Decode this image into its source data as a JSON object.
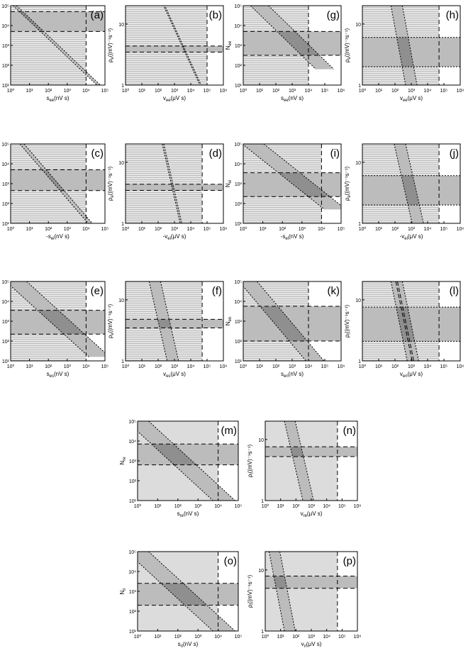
{
  "chart_data": [
    {
      "id": "a",
      "type": "area",
      "label": "(a)",
      "ylabel": "N",
      "ysub": "ee",
      "xlabel": "s",
      "xsub": "ee",
      "xunit": "(nV s)",
      "xprefix": "",
      "ylog": [
        1,
        5
      ],
      "xlog": [
        0,
        5
      ],
      "xticks": [
        "10⁰",
        "10¹",
        "10²",
        "10³",
        "10⁴",
        "10⁵"
      ],
      "yticks": [
        "10¹",
        "10²",
        "10³",
        "10⁴",
        "10⁵"
      ],
      "band": [
        3.7,
        4.7
      ],
      "diag": [
        [
          0,
          5.2
        ],
        [
          5,
          0.7
        ]
      ],
      "diagw": 0.09,
      "vline": 4,
      "style": "hatch"
    },
    {
      "id": "b",
      "type": "area",
      "label": "(b)",
      "ylabel": "ρ",
      "ysub": "e",
      "yunit": "((mV)⁻¹s⁻¹)",
      "xlabel": "v",
      "xsub": "ee",
      "xunit": "(μV s)",
      "xlog": [
        0,
        6
      ],
      "ylog": [
        0,
        1.3
      ],
      "xticks": [
        "10⁰",
        "10¹",
        "10²",
        "10³",
        "10⁴",
        "10⁵",
        "10⁶"
      ],
      "yticks": [
        "1",
        "10"
      ],
      "band": [
        0.54,
        0.64
      ],
      "diag": [
        [
          2.2,
          1.4
        ],
        [
          4.6,
          0
        ]
      ],
      "diagw": 0.04,
      "vline": 5,
      "style": "hatch"
    },
    {
      "id": "g",
      "type": "area",
      "label": "(g)",
      "ylabel": "N",
      "ysub": "ee",
      "xlabel": "s",
      "xsub": "ee",
      "xunit": "(nV s)",
      "xlog": [
        0,
        6
      ],
      "ylog": [
        1,
        5
      ],
      "xticks": [
        "10⁰",
        "10¹",
        "10²",
        "10³",
        "10⁴",
        "10⁵",
        "10⁶"
      ],
      "yticks": [
        "10¹",
        "10²",
        "10³",
        "10⁴",
        "10⁵"
      ],
      "band": [
        2.5,
        3.7
      ],
      "diag": [
        [
          1,
          5
        ],
        [
          5,
          1.8
        ]
      ],
      "diagw": 0.55,
      "vline": 4,
      "style": "hatch"
    },
    {
      "id": "h",
      "type": "area",
      "label": "(h)",
      "ylabel": "ρ",
      "ysub": "e",
      "yunit": "((mV)⁻¹s⁻¹)",
      "xlabel": "v",
      "xsub": "ee",
      "xunit": "(μV s)",
      "xlog": [
        0,
        6
      ],
      "ylog": [
        0,
        1.3
      ],
      "xticks": [
        "10⁰",
        "10¹",
        "10²",
        "10³",
        "10⁴",
        "10⁵",
        "10⁶"
      ],
      "yticks": [
        "1",
        "10"
      ],
      "band": [
        0.3,
        0.78
      ],
      "diag": [
        [
          2.1,
          1.3
        ],
        [
          3,
          0
        ]
      ],
      "diagw": 0.35,
      "vline": 4.7,
      "style": "hatch"
    },
    {
      "id": "c",
      "type": "area",
      "label": "(c)",
      "ylabel": "N",
      "ysub": "ee",
      "xlabel": "-s",
      "xsub": "ei",
      "xunit": "(nV s)",
      "xlog": [
        0,
        5
      ],
      "ylog": [
        1,
        5
      ],
      "xticks": [
        "10⁰",
        "10¹",
        "10²",
        "10³",
        "10⁴",
        "10⁵"
      ],
      "yticks": [
        "10¹",
        "10²",
        "10³",
        "10⁴",
        "10⁵"
      ],
      "band": [
        2.65,
        3.7
      ],
      "diag": [
        [
          0.6,
          5
        ],
        [
          4.4,
          0.8
        ]
      ],
      "diagw": 0.11,
      "vline": 4,
      "style": "hatch"
    },
    {
      "id": "d",
      "type": "area",
      "label": "(d)",
      "ylabel": "ρ",
      "ysub": "e",
      "yunit": "((mV)⁻¹s⁻¹)",
      "xlabel": "-v",
      "xsub": "ei",
      "xunit": "(μV s)",
      "xlog": [
        0,
        6
      ],
      "ylog": [
        0,
        1.3
      ],
      "xticks": [
        "10⁰",
        "10¹",
        "10²",
        "10³",
        "10⁴",
        "10⁵",
        "10⁶"
      ],
      "yticks": [
        "1",
        "10"
      ],
      "band": [
        0.54,
        0.64
      ],
      "diag": [
        [
          2.3,
          1.3
        ],
        [
          3.4,
          0
        ]
      ],
      "diagw": 0.05,
      "vline": 4.7,
      "style": "hatch"
    },
    {
      "id": "i",
      "type": "area",
      "label": "(i)",
      "ylabel": "N",
      "ysub": "ei",
      "xlabel": "-s",
      "xsub": "ei",
      "xunit": "(nV s)",
      "xlog": [
        0,
        5
      ],
      "ylog": [
        1,
        5
      ],
      "xticks": [
        "10⁰",
        "10¹",
        "10²",
        "10³",
        "10⁴",
        "10⁵"
      ],
      "yticks": [
        "10¹",
        "10²",
        "10³",
        "10⁴",
        "10⁵"
      ],
      "band": [
        2.35,
        3.55
      ],
      "diag": [
        [
          0.5,
          5
        ],
        [
          4.7,
          1.7
        ]
      ],
      "diagw": 0.55,
      "vline": 4,
      "style": "hatch"
    },
    {
      "id": "j",
      "type": "area",
      "label": "(j)",
      "ylabel": "ρ",
      "ysub": "e",
      "yunit": "((mV)⁻¹s⁻¹)",
      "xlabel": "-v",
      "xsub": "ei",
      "xunit": "(μV s)",
      "xlog": [
        0,
        6
      ],
      "ylog": [
        0,
        1.3
      ],
      "xticks": [
        "10⁰",
        "10¹",
        "10²",
        "10³",
        "10⁴",
        "10⁵",
        "10⁶"
      ],
      "yticks": [
        "1",
        "10"
      ],
      "band": [
        0.3,
        0.78
      ],
      "diag": [
        [
          2.3,
          1.3
        ],
        [
          3.4,
          0
        ]
      ],
      "diagw": 0.35,
      "vline": 4.7,
      "style": "hatch"
    },
    {
      "id": "e",
      "type": "area",
      "label": "(e)",
      "ylabel": "N",
      "ysub": "es",
      "xlabel": "s",
      "xsub": "es",
      "xunit": "(nV s)",
      "xlog": [
        0,
        5
      ],
      "ylog": [
        1,
        5
      ],
      "xticks": [
        "10⁰",
        "10¹",
        "10²",
        "10³",
        "10⁴",
        "10⁵"
      ],
      "yticks": [
        "10¹",
        "10²",
        "10³",
        "10⁴",
        "10⁵"
      ],
      "band": [
        2.35,
        3.55
      ],
      "diag": [
        [
          0.3,
          5
        ],
        [
          4.7,
          1.2
        ]
      ],
      "diagw": 0.55,
      "vline": 4,
      "style": "hatch"
    },
    {
      "id": "f",
      "type": "area",
      "label": "(f)",
      "ylabel": "ρ",
      "ysub": "e",
      "yunit": "((mV)⁻¹s⁻¹)",
      "xlabel": "v",
      "xsub": "es",
      "xunit": "(μV s)",
      "xlog": [
        0,
        6
      ],
      "ylog": [
        0,
        1.3
      ],
      "xticks": [
        "10⁰",
        "10¹",
        "10²",
        "10³",
        "10⁴",
        "10⁵",
        "10⁶"
      ],
      "yticks": [
        "1",
        "10"
      ],
      "band": [
        0.54,
        0.68
      ],
      "diag": [
        [
          1.8,
          1.3
        ],
        [
          2.9,
          0
        ]
      ],
      "diagw": 0.35,
      "vline": 4.7,
      "style": "hatch"
    },
    {
      "id": "k",
      "type": "area",
      "label": "(k)",
      "ylabel": "N",
      "ysub": "en",
      "xlabel": "s",
      "xsub": "en",
      "xunit": "(nV s)",
      "xlog": [
        0,
        6
      ],
      "ylog": [
        1,
        5
      ],
      "xticks": [
        "10⁰",
        "10¹",
        "10²",
        "10³",
        "10⁴",
        "10⁵",
        "10⁶"
      ],
      "yticks": [
        "10¹",
        "10²",
        "10³",
        "10⁴",
        "10⁵"
      ],
      "band": [
        2.0,
        3.75
      ],
      "diag": [
        [
          0.3,
          5
        ],
        [
          4.5,
          0.9
        ]
      ],
      "diagw": 0.55,
      "vline": 4,
      "style": "hatch"
    },
    {
      "id": "l",
      "type": "area",
      "label": "(l)",
      "ylabel": "ρ",
      "ysub": "i",
      "yunit": "((mV)⁻¹s⁻¹)",
      "xlabel": "v",
      "xsub": "en",
      "xunit": "(μV s)",
      "xlog": [
        0,
        6
      ],
      "ylog": [
        0,
        1.3
      ],
      "xticks": [
        "10⁰",
        "10¹",
        "10²",
        "10³",
        "10⁴",
        "10⁵",
        "10⁶"
      ],
      "yticks": [
        "1",
        "10"
      ],
      "band": [
        0.32,
        0.88
      ],
      "diag": [
        [
          2.1,
          1.3
        ],
        [
          3.1,
          0
        ]
      ],
      "diagw": 0.35,
      "vline": 4.7,
      "style": "hatch",
      "dashedcore": true
    },
    {
      "id": "m",
      "type": "area",
      "label": "(m)",
      "ylabel": "N",
      "ysub": "re",
      "xlabel": "s",
      "xsub": "re",
      "xunit": "(nV s)",
      "xlog": [
        0,
        5
      ],
      "ylog": [
        1,
        5
      ],
      "xticks": [
        "10⁰",
        "10¹",
        "10²",
        "10³",
        "10⁴",
        "10⁵"
      ],
      "yticks": [
        "10¹",
        "10²",
        "10³",
        "10⁴",
        "10⁵"
      ],
      "band": [
        2.8,
        3.85
      ],
      "diag": [
        [
          0,
          5
        ],
        [
          4.4,
          0.9
        ]
      ],
      "diagw": 0.55,
      "vline": 4,
      "style": "solid"
    },
    {
      "id": "n",
      "type": "area",
      "label": "(n)",
      "ylabel": "ρ",
      "ysub": "i",
      "yunit": "((mV)⁻¹s⁻¹)",
      "xlabel": "v",
      "xsub": "re",
      "xunit": "(μV s)",
      "xlog": [
        0,
        6
      ],
      "ylog": [
        0,
        1.3
      ],
      "xticks": [
        "10⁰",
        "10¹",
        "10²",
        "10³",
        "10⁴",
        "10⁵",
        "10⁶"
      ],
      "yticks": [
        "1",
        "10"
      ],
      "band": [
        0.72,
        0.88
      ],
      "diag": [
        [
          1.6,
          1.3
        ],
        [
          2.8,
          0
        ]
      ],
      "diagw": 0.35,
      "vline": 4.7,
      "style": "solid"
    },
    {
      "id": "o",
      "type": "area",
      "label": "(o)",
      "ylabel": "N",
      "ysub": "ri",
      "xlabel": "s",
      "xsub": "ri",
      "xunit": "(nV s)",
      "xlog": [
        0,
        5
      ],
      "ylog": [
        1,
        5
      ],
      "xticks": [
        "10⁰",
        "10¹",
        "10²",
        "10³",
        "10⁴",
        "10⁵"
      ],
      "yticks": [
        "10¹",
        "10²",
        "10³",
        "10⁴",
        "10⁵"
      ],
      "band": [
        2.3,
        3.4
      ],
      "diag": [
        [
          0,
          5
        ],
        [
          4.4,
          0.9
        ]
      ],
      "diagw": 0.55,
      "vline": 4,
      "style": "solid"
    },
    {
      "id": "p",
      "type": "area",
      "label": "(p)",
      "ylabel": "ρ",
      "ysub": "i",
      "yunit": "((mV)⁻¹s⁻¹)",
      "xlabel": "v",
      "xsub": "ri",
      "xunit": "(μV s)",
      "xlog": [
        0,
        6
      ],
      "ylog": [
        0,
        1.3
      ],
      "xticks": [
        "10⁰",
        "10¹",
        "10²",
        "10³",
        "10⁴",
        "10⁵",
        "10⁶"
      ],
      "yticks": [
        "1",
        "10"
      ],
      "band": [
        0.7,
        0.9
      ],
      "diag": [
        [
          0.6,
          1.3
        ],
        [
          1.6,
          0
        ]
      ],
      "diagw": 0.35,
      "vline": 4.7,
      "style": "solid"
    }
  ],
  "colors": {
    "light": "#dcdcdc",
    "mid": "#bcbcbc",
    "dark": "#8f8f8f",
    "line": "#000000"
  }
}
